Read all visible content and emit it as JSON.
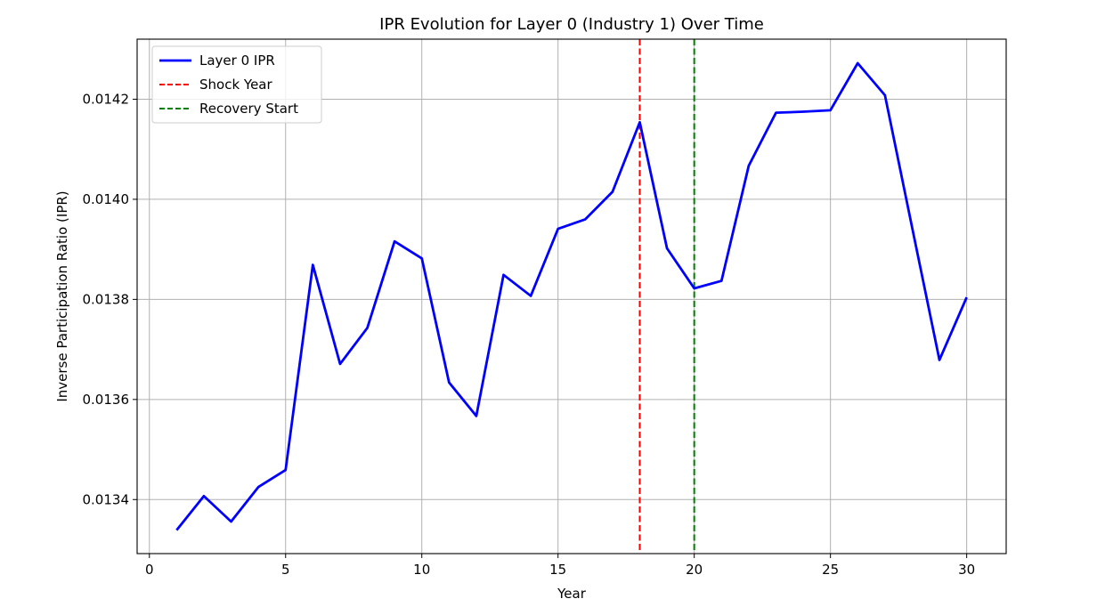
{
  "chart_data": {
    "type": "line",
    "title": "IPR Evolution for Layer 0 (Industry 1) Over Time",
    "xlabel": "Year",
    "ylabel": "Inverse Participation Ratio (IPR)",
    "xlim": [
      -0.45,
      31.45
    ],
    "ylim": [
      0.013292,
      0.01432
    ],
    "xticks": [
      0,
      5,
      10,
      15,
      20,
      25,
      30
    ],
    "xtick_labels": [
      "0",
      "5",
      "10",
      "15",
      "20",
      "25",
      "30"
    ],
    "yticks": [
      0.0134,
      0.0136,
      0.0138,
      0.014,
      0.0142
    ],
    "ytick_labels": [
      "0.0134",
      "0.0136",
      "0.0138",
      "0.0140",
      "0.0142"
    ],
    "grid": true,
    "legend_position": "top-left",
    "x": [
      1,
      2,
      3,
      4,
      5,
      6,
      7,
      8,
      9,
      10,
      11,
      12,
      13,
      14,
      15,
      16,
      17,
      18,
      19,
      20,
      21,
      22,
      23,
      24,
      25,
      26,
      27,
      28,
      29,
      30
    ],
    "series": [
      {
        "name": "Layer 0 IPR",
        "color": "#0000ff",
        "style": "solid",
        "values": [
          0.013339,
          0.013407,
          0.013356,
          0.013425,
          0.013459,
          0.013869,
          0.013671,
          0.013743,
          0.013916,
          0.013882,
          0.013634,
          0.013567,
          0.013849,
          0.013807,
          0.013941,
          0.01396,
          0.014015,
          0.014154,
          0.013902,
          0.013822,
          0.013837,
          0.014067,
          0.014173,
          0.014175,
          0.014178,
          0.014272,
          0.014208,
          0.013943,
          0.013679,
          0.013804
        ]
      }
    ],
    "vlines": [
      {
        "name": "Shock Year",
        "x": 18,
        "color": "#ff0000",
        "style": "dashed"
      },
      {
        "name": "Recovery Start",
        "x": 20,
        "color": "#008000",
        "style": "dashed"
      }
    ]
  }
}
